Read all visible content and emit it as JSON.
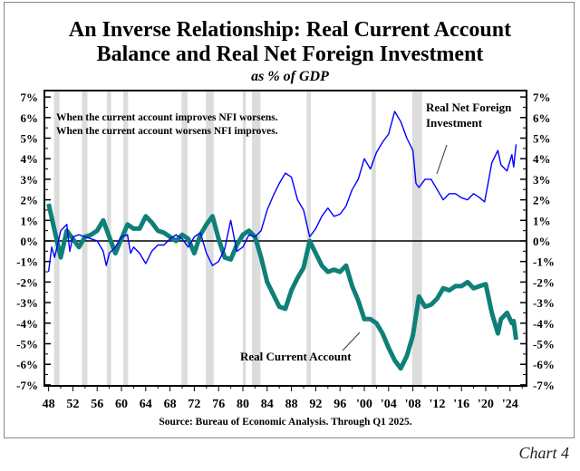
{
  "chart_data": {
    "type": "line",
    "title": "An Inverse Relationship: Real Current Account Balance and Real Net Foreign Investment",
    "title_lines": [
      "An Inverse Relationship: Real Current Account",
      "Balance and Real Net Foreign Investment"
    ],
    "subtitle": "as % of GDP",
    "source": "Source:  Bureau of Economic Analysis. Through Q1 2025.",
    "chart_label": "Chart 4",
    "ylim": [
      -7,
      7
    ],
    "xlim": [
      1948,
      2026.5
    ],
    "y_ticks": [
      "7%",
      "6%",
      "5%",
      "4%",
      "3%",
      "2%",
      "1%",
      "0%",
      "-1%",
      "-2%",
      "-3%",
      "-4%",
      "-5%",
      "-6%",
      "-7%"
    ],
    "x_ticks": [
      {
        "year": 1948,
        "label": "48"
      },
      {
        "year": 1952,
        "label": "52"
      },
      {
        "year": 1956,
        "label": "56"
      },
      {
        "year": 1960,
        "label": "60"
      },
      {
        "year": 1964,
        "label": "64"
      },
      {
        "year": 1968,
        "label": "68"
      },
      {
        "year": 1972,
        "label": "72"
      },
      {
        "year": 1976,
        "label": "76"
      },
      {
        "year": 1980,
        "label": "80"
      },
      {
        "year": 1984,
        "label": "84"
      },
      {
        "year": 1988,
        "label": "88"
      },
      {
        "year": 1992,
        "label": "92"
      },
      {
        "year": 1996,
        "label": "96"
      },
      {
        "year": 2000,
        "label": "'00"
      },
      {
        "year": 2004,
        "label": "'04"
      },
      {
        "year": 2008,
        "label": "'08"
      },
      {
        "year": 2012,
        "label": "'12"
      },
      {
        "year": 2016,
        "label": "'16"
      },
      {
        "year": 2020,
        "label": "'20"
      },
      {
        "year": 2024,
        "label": "'24"
      }
    ],
    "recessions": [
      [
        1948.9,
        1949.8
      ],
      [
        1953.5,
        1954.4
      ],
      [
        1957.6,
        1958.3
      ],
      [
        1960.3,
        1961.1
      ],
      [
        1969.9,
        1970.9
      ],
      [
        1973.9,
        1975.2
      ],
      [
        1980.0,
        1980.5
      ],
      [
        1981.5,
        1982.9
      ],
      [
        1990.5,
        1991.2
      ],
      [
        2001.2,
        2001.9
      ],
      [
        2007.9,
        2009.5
      ]
    ],
    "annotations": [
      "When the current account improves NFI worsens.",
      "When the current account worsens NFI improves."
    ],
    "series": [
      {
        "name": "Real Net Foreign Investment",
        "label_lines": [
          "Real Net Foreign",
          "Investment"
        ],
        "color": "#0000ff",
        "x": [
          1948,
          1948.5,
          1949,
          1950,
          1951,
          1951.5,
          1952,
          1953,
          1954,
          1955,
          1956,
          1957,
          1957.5,
          1958,
          1959,
          1960,
          1961,
          1961.5,
          1962,
          1963,
          1964,
          1965,
          1966,
          1967,
          1968,
          1969,
          1970,
          1971,
          1972,
          1973,
          1974,
          1975,
          1976,
          1977,
          1978,
          1979,
          1980,
          1981,
          1982,
          1983,
          1984,
          1985,
          1986,
          1987,
          1988,
          1989,
          1990,
          1991,
          1992,
          1993,
          1994,
          1995,
          1996,
          1997,
          1998,
          1999,
          2000,
          2001,
          2002,
          2003,
          2004,
          2005,
          2006,
          2007,
          2008,
          2008.5,
          2009,
          2010,
          2011,
          2012,
          2013,
          2014,
          2015,
          2016,
          2017,
          2018,
          2019,
          2019.8,
          2020.5,
          2021,
          2022,
          2022.5,
          2023.5,
          2024.3,
          2024.6,
          2025
        ],
        "y": [
          -1.5,
          -0.3,
          -0.8,
          0.5,
          0.8,
          -0.5,
          0.2,
          0.3,
          0.2,
          0.1,
          0,
          -0.5,
          -1.2,
          -0.6,
          -0.3,
          0.2,
          0.3,
          -0.6,
          -0.3,
          -0.6,
          -1.1,
          -0.5,
          -0.2,
          -0.2,
          0.1,
          0.3,
          0.1,
          -0.3,
          0.2,
          0.4,
          -0.6,
          -1.2,
          -1.0,
          -0.4,
          1.0,
          -0.5,
          -0.3,
          0.3,
          0.2,
          0.5,
          1.5,
          2.2,
          2.8,
          3.3,
          3.1,
          2.0,
          1.5,
          0.2,
          0.6,
          1.2,
          1.6,
          1.2,
          1.3,
          1.7,
          2.5,
          3.0,
          4.0,
          3.5,
          4.3,
          4.8,
          5.2,
          6.3,
          5.8,
          5.0,
          4.4,
          2.8,
          2.6,
          3.0,
          3.0,
          2.5,
          2.0,
          2.3,
          2.3,
          2.1,
          2.0,
          2.3,
          2.1,
          1.9,
          3.0,
          3.8,
          4.4,
          3.7,
          3.4,
          4.2,
          3.6,
          4.7
        ]
      },
      {
        "name": "Real Current Account",
        "color": "#0e8078",
        "x": [
          1948,
          1949,
          1950,
          1951,
          1952,
          1953,
          1954,
          1955,
          1956,
          1957,
          1958,
          1959,
          1960,
          1961,
          1962,
          1963,
          1964,
          1965,
          1966,
          1967,
          1968,
          1969,
          1970,
          1971,
          1972,
          1973,
          1974,
          1975,
          1976,
          1977,
          1978,
          1979,
          1980,
          1981,
          1982,
          1983,
          1984,
          1985,
          1986,
          1987,
          1988,
          1989,
          1990,
          1991,
          1992,
          1993,
          1994,
          1995,
          1996,
          1997,
          1998,
          1999,
          2000,
          2001,
          2002,
          2003,
          2004,
          2005,
          2006,
          2007,
          2008,
          2009,
          2010,
          2011,
          2012,
          2013,
          2014,
          2015,
          2016,
          2017,
          2018,
          2019,
          2020,
          2021,
          2022,
          2022.5,
          2023.5,
          2024.3,
          2024.6,
          2025
        ],
        "y": [
          1.8,
          0.5,
          -0.8,
          0.5,
          0.1,
          -0.3,
          0.2,
          0.3,
          0.5,
          1.0,
          0.2,
          -0.6,
          0.1,
          0.8,
          0.6,
          0.6,
          1.2,
          0.9,
          0.5,
          0.4,
          0.2,
          0.0,
          0.3,
          0.1,
          -0.6,
          0.3,
          0.8,
          1.2,
          0.1,
          -0.8,
          -0.9,
          -0.2,
          0.3,
          0.5,
          0.2,
          -0.8,
          -2.0,
          -2.6,
          -3.2,
          -3.3,
          -2.4,
          -1.8,
          -1.3,
          0,
          -0.6,
          -1.2,
          -1.5,
          -1.4,
          -1.5,
          -1.2,
          -2.2,
          -2.9,
          -3.8,
          -3.8,
          -4.0,
          -4.5,
          -5.2,
          -5.8,
          -6.2,
          -5.6,
          -4.6,
          -2.7,
          -3.2,
          -3.1,
          -2.8,
          -2.3,
          -2.4,
          -2.2,
          -2.2,
          -2.0,
          -2.3,
          -2.2,
          -2.1,
          -3.5,
          -4.5,
          -3.8,
          -3.5,
          -4.0,
          -3.9,
          -4.8
        ]
      }
    ],
    "grid": false
  }
}
